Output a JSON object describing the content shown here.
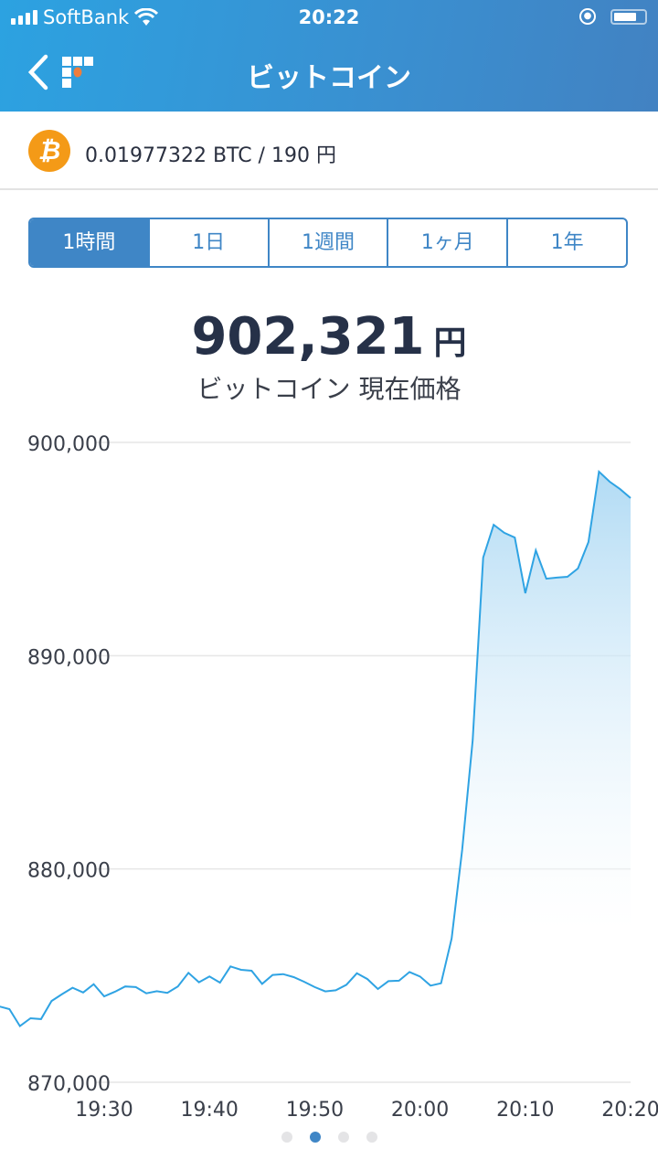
{
  "status_bar": {
    "carrier": "SoftBank",
    "time": "20:22",
    "signal_icon": "signal-bars-icon",
    "wifi_icon": "wifi-icon",
    "lock_icon": "rotation-lock-icon",
    "battery_icon": "battery-icon"
  },
  "nav": {
    "back_icon": "chevron-left-icon",
    "logo": "F",
    "title": "ビットコイン"
  },
  "holding": {
    "icon": "bitcoin-icon",
    "text": "0.01977322 BTC / 190 円"
  },
  "tabs": [
    {
      "label": "1時間",
      "active": true
    },
    {
      "label": "1日",
      "active": false
    },
    {
      "label": "1週間",
      "active": false
    },
    {
      "label": "1ヶ月",
      "active": false
    },
    {
      "label": "1年",
      "active": false
    }
  ],
  "price": {
    "value": "902,321",
    "unit": "円",
    "caption": "ビットコイン 現在価格"
  },
  "colors": {
    "accent": "#3f86c6",
    "line": "#2fa3e3",
    "bitcoin": "#f49a17"
  },
  "chart_data": {
    "type": "area",
    "title": "",
    "xlabel": "",
    "ylabel": "",
    "ylim": [
      870000,
      900000
    ],
    "yticks": [
      "900,000",
      "890,000",
      "880,000",
      "870,000"
    ],
    "ytick_values": [
      900000,
      890000,
      880000,
      870000
    ],
    "xticks": [
      "19:30",
      "19:40",
      "19:50",
      "20:00",
      "20:10",
      "20:20"
    ],
    "xrange": [
      "19:20",
      "20:20"
    ],
    "grid": true,
    "x": [
      "19:20",
      "19:21",
      "19:22",
      "19:23",
      "19:24",
      "19:25",
      "19:26",
      "19:27",
      "19:28",
      "19:29",
      "19:30",
      "19:31",
      "19:32",
      "19:33",
      "19:34",
      "19:35",
      "19:36",
      "19:37",
      "19:38",
      "19:39",
      "19:40",
      "19:41",
      "19:42",
      "19:43",
      "19:44",
      "19:45",
      "19:46",
      "19:47",
      "19:48",
      "19:49",
      "19:50",
      "19:51",
      "19:52",
      "19:53",
      "19:54",
      "19:55",
      "19:56",
      "19:57",
      "19:58",
      "19:59",
      "20:00",
      "20:01",
      "20:02",
      "20:03",
      "20:04",
      "20:05",
      "20:06",
      "20:07",
      "20:08",
      "20:09",
      "20:10",
      "20:11",
      "20:12",
      "20:13",
      "20:14",
      "20:15",
      "20:16",
      "20:17",
      "20:18",
      "20:19",
      "20:20"
    ],
    "values": [
      873560,
      873430,
      872630,
      873000,
      872960,
      873810,
      874130,
      874430,
      874210,
      874600,
      874030,
      874240,
      874490,
      874460,
      874170,
      874270,
      874190,
      874490,
      875130,
      874690,
      874960,
      874670,
      875430,
      875270,
      875230,
      874610,
      875030,
      875070,
      874930,
      874710,
      874460,
      874260,
      874310,
      874570,
      875110,
      874840,
      874370,
      874740,
      874760,
      875170,
      874960,
      874530,
      874640,
      876740,
      880890,
      886030,
      894600,
      896140,
      895760,
      895540,
      892930,
      894940,
      893610,
      893660,
      893700,
      894090,
      895330,
      898630,
      898160,
      897810,
      897390
    ]
  },
  "pager": {
    "count": 4,
    "active": 1
  }
}
